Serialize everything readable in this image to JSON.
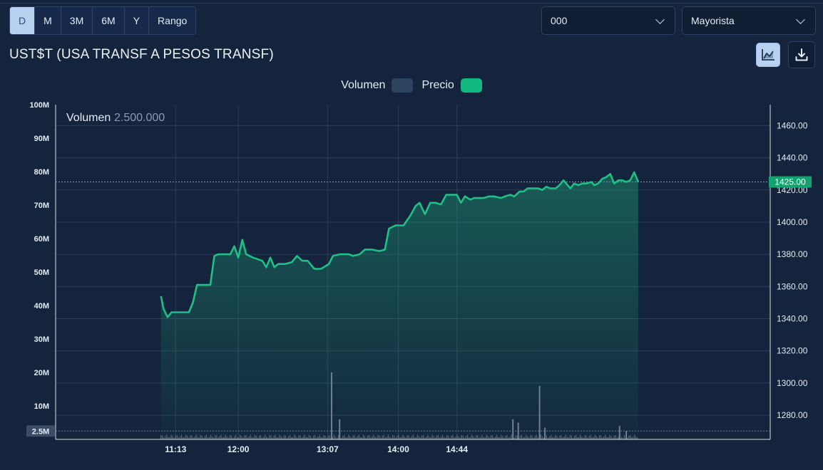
{
  "range_buttons": [
    {
      "label": "D",
      "active": true
    },
    {
      "label": "M",
      "active": false
    },
    {
      "label": "3M",
      "active": false
    },
    {
      "label": "6M",
      "active": false
    },
    {
      "label": "Y",
      "active": false
    },
    {
      "label": "Rango",
      "active": false
    }
  ],
  "selects": {
    "settlement": {
      "value": "000"
    },
    "segment": {
      "value": "Mayorista"
    }
  },
  "icons": {
    "chart_type": "area-chart-icon",
    "download": "download-icon"
  },
  "colors": {
    "price_line": "#1fbf86",
    "volume_swatch": "#2e4562",
    "price_swatch": "#12b980",
    "current_price_bg": "#12a371",
    "volume_bar": "#6f7f96"
  },
  "chart_data": {
    "type": "area",
    "title": "UST$T (USA TRANSF A PESOS TRANSF)",
    "legend": [
      "Volumen",
      "Precio"
    ],
    "hover_label": "Volumen",
    "hover_value": "2.500.000",
    "current_price": "1425.00",
    "volume_marker": "2.5M",
    "x_ticks": [
      "11:13",
      "12:00",
      "13:07",
      "14:00",
      "14:44"
    ],
    "y_left_ticks": [
      "100M",
      "90M",
      "80M",
      "70M",
      "60M",
      "50M",
      "40M",
      "30M",
      "20M",
      "10M"
    ],
    "y_left_range": [
      0,
      100
    ],
    "y_right_ticks": [
      "1460.00",
      "1440.00",
      "1420.00",
      "1400.00",
      "1380.00",
      "1360.00",
      "1340.00",
      "1320.00",
      "1300.00",
      "1280.00"
    ],
    "y_right_range": [
      1265,
      1473
    ],
    "x_range_minutes": [
      583,
      1119
    ],
    "price": [
      [
        662,
        1354
      ],
      [
        664,
        1346
      ],
      [
        667,
        1341
      ],
      [
        670,
        1344
      ],
      [
        675,
        1344
      ],
      [
        683,
        1344
      ],
      [
        686,
        1350
      ],
      [
        689,
        1361
      ],
      [
        695,
        1361
      ],
      [
        699,
        1361
      ],
      [
        702,
        1379
      ],
      [
        705,
        1380
      ],
      [
        709,
        1380
      ],
      [
        714,
        1380
      ],
      [
        717,
        1385
      ],
      [
        720,
        1378
      ],
      [
        723,
        1389
      ],
      [
        726,
        1380
      ],
      [
        731,
        1378
      ],
      [
        738,
        1376
      ],
      [
        741,
        1372
      ],
      [
        744,
        1378
      ],
      [
        747,
        1372
      ],
      [
        750,
        1374
      ],
      [
        755,
        1374
      ],
      [
        760,
        1375
      ],
      [
        764,
        1379
      ],
      [
        768,
        1376
      ],
      [
        772,
        1376
      ],
      [
        777,
        1371
      ],
      [
        782,
        1371
      ],
      [
        788,
        1374
      ],
      [
        791,
        1379
      ],
      [
        796,
        1380
      ],
      [
        803,
        1380
      ],
      [
        806,
        1379
      ],
      [
        811,
        1380
      ],
      [
        815,
        1383
      ],
      [
        820,
        1383
      ],
      [
        826,
        1382
      ],
      [
        830,
        1383
      ],
      [
        833,
        1396
      ],
      [
        838,
        1398
      ],
      [
        844,
        1398
      ],
      [
        849,
        1404
      ],
      [
        853,
        1410
      ],
      [
        856,
        1412
      ],
      [
        860,
        1405
      ],
      [
        864,
        1412
      ],
      [
        868,
        1412
      ],
      [
        872,
        1411
      ],
      [
        876,
        1417
      ],
      [
        884,
        1417
      ],
      [
        887,
        1412
      ],
      [
        890,
        1416
      ],
      [
        894,
        1414
      ],
      [
        897,
        1415
      ],
      [
        904,
        1415
      ],
      [
        908,
        1416
      ],
      [
        912,
        1416
      ],
      [
        917,
        1415
      ],
      [
        920,
        1416
      ],
      [
        924,
        1417
      ],
      [
        927,
        1416
      ],
      [
        931,
        1419
      ],
      [
        934,
        1419
      ],
      [
        937,
        1421
      ],
      [
        940,
        1421
      ],
      [
        945,
        1421
      ],
      [
        948,
        1420
      ],
      [
        951,
        1422
      ],
      [
        954,
        1421
      ],
      [
        958,
        1421
      ],
      [
        961,
        1423
      ],
      [
        964,
        1426
      ],
      [
        969,
        1421
      ],
      [
        972,
        1424
      ],
      [
        975,
        1423
      ],
      [
        978,
        1424
      ],
      [
        981,
        1424
      ],
      [
        985,
        1425
      ],
      [
        987,
        1423
      ],
      [
        990,
        1424
      ],
      [
        993,
        1427
      ],
      [
        996,
        1428
      ],
      [
        999,
        1430
      ],
      [
        1002,
        1424
      ],
      [
        1005,
        1426
      ],
      [
        1008,
        1426
      ],
      [
        1011,
        1425
      ],
      [
        1014,
        1426
      ],
      [
        1017,
        1431
      ],
      [
        1020,
        1425
      ]
    ],
    "volume_spikes": [
      [
        790,
        20.0
      ],
      [
        796,
        6.0
      ],
      [
        926,
        6.0
      ],
      [
        930,
        5.0
      ],
      [
        946,
        16.0
      ],
      [
        950,
        3.5
      ],
      [
        1006,
        4.0
      ],
      [
        1011,
        2.5
      ]
    ]
  }
}
